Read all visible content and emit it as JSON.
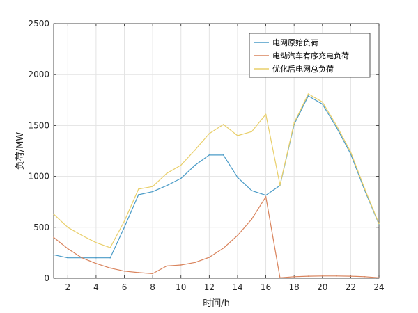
{
  "chart_data": {
    "type": "line",
    "xlabel": "时间/h",
    "ylabel": "负荷/MW",
    "xlim": [
      1,
      24
    ],
    "ylim": [
      0,
      2500
    ],
    "xticks": [
      2,
      4,
      6,
      8,
      10,
      12,
      14,
      16,
      18,
      20,
      22,
      24
    ],
    "yticks": [
      0,
      500,
      1000,
      1500,
      2000,
      2500
    ],
    "grid": true,
    "legend_position": "top-right",
    "x": [
      1,
      2,
      3,
      4,
      5,
      6,
      7,
      8,
      9,
      10,
      11,
      12,
      13,
      14,
      15,
      16,
      17,
      18,
      19,
      20,
      21,
      22,
      23,
      24
    ],
    "series": [
      {
        "name": "电网原始负荷",
        "color": "#4a9bc7",
        "values": [
          230,
          200,
          200,
          200,
          200,
          500,
          820,
          850,
          910,
          980,
          1110,
          1210,
          1210,
          990,
          860,
          815,
          910,
          1510,
          1790,
          1710,
          1480,
          1220,
          860,
          530
        ]
      },
      {
        "name": "电动汽车有序充电负荷",
        "color": "#d9835c",
        "values": [
          400,
          290,
          200,
          145,
          100,
          70,
          55,
          45,
          120,
          130,
          155,
          205,
          295,
          420,
          580,
          800,
          5,
          15,
          20,
          22,
          22,
          20,
          15,
          5
        ]
      },
      {
        "name": "优化后电网总负荷",
        "color": "#e9cf6a",
        "values": [
          630,
          500,
          420,
          350,
          300,
          560,
          875,
          900,
          1030,
          1110,
          1260,
          1420,
          1510,
          1400,
          1440,
          1610,
          915,
          1525,
          1810,
          1730,
          1500,
          1240,
          875,
          535
        ]
      }
    ]
  }
}
